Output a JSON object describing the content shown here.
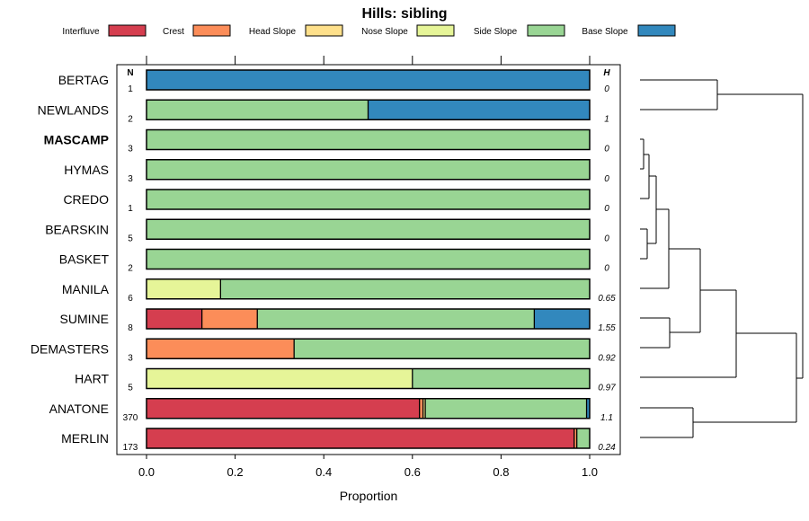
{
  "chart_data": {
    "type": "bar",
    "subtype": "stacked-horizontal-proportion-with-dendrogram",
    "title": "Hills: sibling",
    "xlabel": "Proportion",
    "ylabel": "",
    "xlim": [
      0,
      1
    ],
    "xticks": [
      "0.0",
      "0.2",
      "0.4",
      "0.6",
      "0.8",
      "1.0"
    ],
    "n_header": "N",
    "h_header": "H",
    "legend": [
      {
        "name": "Interfluve",
        "color": "#d53e4f"
      },
      {
        "name": "Crest",
        "color": "#fc8d59"
      },
      {
        "name": "Head Slope",
        "color": "#fee08b"
      },
      {
        "name": "Nose Slope",
        "color": "#e6f598"
      },
      {
        "name": "Side Slope",
        "color": "#99d594"
      },
      {
        "name": "Base Slope",
        "color": "#3288bd"
      }
    ],
    "rows": [
      {
        "name": "BERTAG",
        "n": "1",
        "h": "0",
        "bold": false,
        "values": [
          0,
          0,
          0,
          0,
          0,
          1
        ]
      },
      {
        "name": "NEWLANDS",
        "n": "2",
        "h": "1",
        "bold": false,
        "values": [
          0,
          0,
          0,
          0,
          0.5,
          0.5
        ]
      },
      {
        "name": "MASCAMP",
        "n": "3",
        "h": "0",
        "bold": true,
        "values": [
          0,
          0,
          0,
          0,
          1,
          0
        ]
      },
      {
        "name": "HYMAS",
        "n": "3",
        "h": "0",
        "bold": false,
        "values": [
          0,
          0,
          0,
          0,
          1,
          0
        ]
      },
      {
        "name": "CREDO",
        "n": "1",
        "h": "0",
        "bold": false,
        "values": [
          0,
          0,
          0,
          0,
          1,
          0
        ]
      },
      {
        "name": "BEARSKIN",
        "n": "5",
        "h": "0",
        "bold": false,
        "values": [
          0,
          0,
          0,
          0,
          1,
          0
        ]
      },
      {
        "name": "BASKET",
        "n": "2",
        "h": "0",
        "bold": false,
        "values": [
          0,
          0,
          0,
          0,
          1,
          0
        ]
      },
      {
        "name": "MANILA",
        "n": "6",
        "h": "0.65",
        "bold": false,
        "values": [
          0,
          0,
          0,
          0.167,
          0.833,
          0
        ]
      },
      {
        "name": "SUMINE",
        "n": "8",
        "h": "1.55",
        "bold": false,
        "values": [
          0.125,
          0.125,
          0,
          0,
          0.625,
          0.125
        ]
      },
      {
        "name": "DEMASTERS",
        "n": "3",
        "h": "0.92",
        "bold": false,
        "values": [
          0,
          0.333,
          0,
          0,
          0.667,
          0
        ]
      },
      {
        "name": "HART",
        "n": "5",
        "h": "0.97",
        "bold": false,
        "values": [
          0,
          0,
          0,
          0.6,
          0.4,
          0
        ]
      },
      {
        "name": "ANATONE",
        "n": "370",
        "h": "1.1",
        "bold": false,
        "values": [
          0.616,
          0.008,
          0.005,
          0,
          0.364,
          0.008
        ]
      },
      {
        "name": "MERLIN",
        "n": "173",
        "h": "0.24",
        "bold": false,
        "values": [
          0.965,
          0.006,
          0,
          0,
          0.029,
          0
        ]
      }
    ]
  }
}
